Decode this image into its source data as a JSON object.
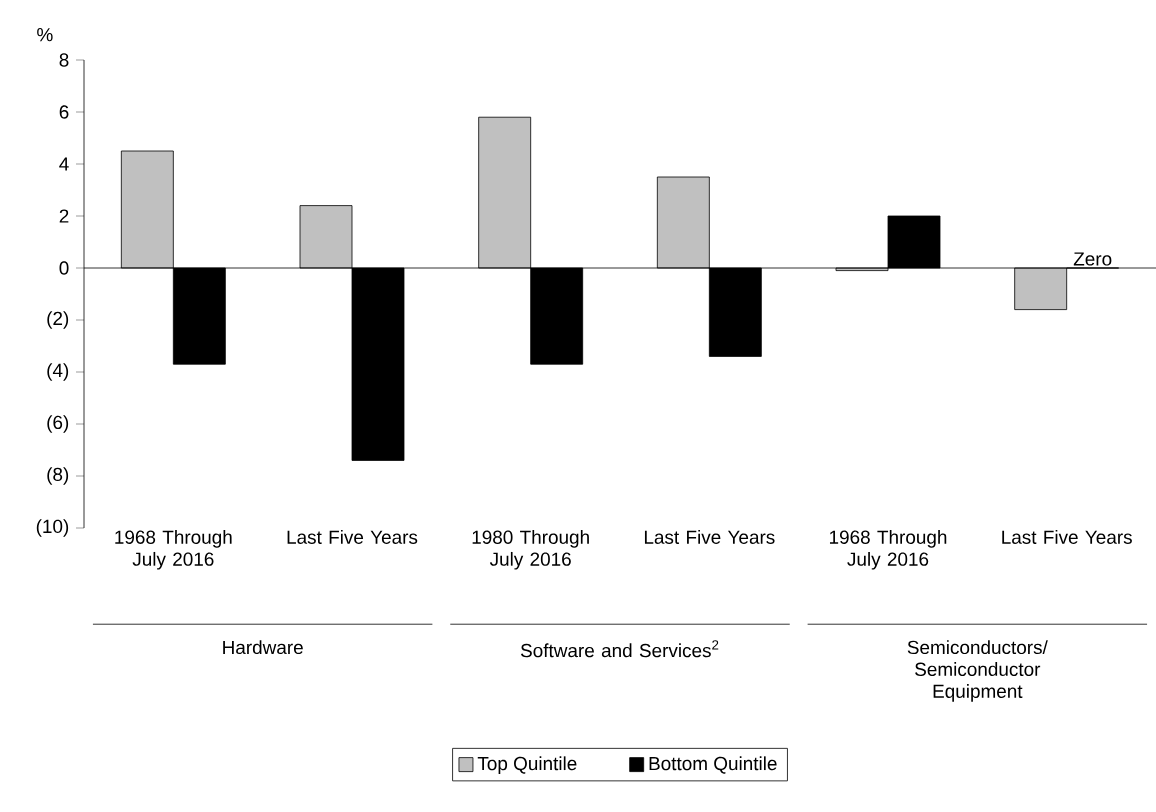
{
  "chart_data": {
    "type": "bar",
    "ylabel": "%",
    "categories": [
      "1968 Through July 2016",
      "Last Five Years",
      "1980 Through July 2016",
      "Last Five Years",
      "1968 Through July 2016",
      "Last Five Years"
    ],
    "series": [
      {
        "name": "Top Quintile",
        "color": "#c0c0c0",
        "values": [
          4.5,
          2.4,
          5.8,
          3.5,
          -0.1,
          -1.6
        ]
      },
      {
        "name": "Bottom Quintile",
        "color": "#000000",
        "values": [
          -3.7,
          -7.4,
          -3.7,
          -3.4,
          2.0,
          0
        ]
      }
    ],
    "ylim": [
      -10,
      8
    ],
    "yticks": [
      {
        "value": -10,
        "label": "(10)"
      },
      {
        "value": -8,
        "label": "(8)"
      },
      {
        "value": -6,
        "label": "(6)"
      },
      {
        "value": -4,
        "label": "(4)"
      },
      {
        "value": -2,
        "label": "(2)"
      },
      0,
      2,
      4,
      6,
      8
    ],
    "annotations": [
      "Hardware",
      "Software and Services$^{2}$",
      "Semiconductors/ Semiconductor Equipment",
      "Zero"
    ],
    "legend": "bottom"
  }
}
